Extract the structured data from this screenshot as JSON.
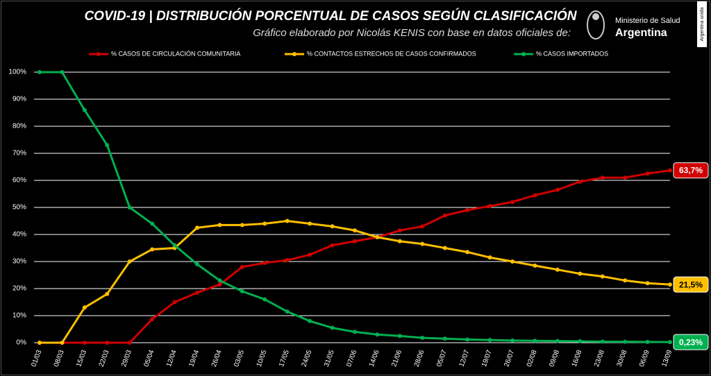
{
  "chart_data": {
    "type": "line",
    "title": "COVID-19  |  DISTRIBUCIÓN PORCENTUAL DE CASOS SEGÚN CLASIFICACIÓN",
    "subtitle": "Gráfico elaborado por Nicolás KENIS con base en datos oficiales de:",
    "logo": {
      "line1": "Ministerio de Salud",
      "line2": "Argentina",
      "side": "Argentina unida"
    },
    "categories": [
      "01/03",
      "08/03",
      "15/03",
      "22/03",
      "29/03",
      "05/04",
      "12/04",
      "19/04",
      "26/04",
      "03/05",
      "10/05",
      "17/05",
      "24/05",
      "31/05",
      "07/06",
      "14/06",
      "21/06",
      "28/06",
      "05/07",
      "12/07",
      "19/07",
      "26/07",
      "02/08",
      "09/08",
      "16/08",
      "23/08",
      "30/08",
      "06/09",
      "13/09"
    ],
    "ylim": [
      0,
      100
    ],
    "yticks": [
      {
        "value": 0,
        "label": "0%"
      },
      {
        "value": 10,
        "label": "10%"
      },
      {
        "value": 20,
        "label": "20%"
      },
      {
        "value": 30,
        "label": "30%"
      },
      {
        "value": 40,
        "label": "40%"
      },
      {
        "value": 50,
        "label": "50%"
      },
      {
        "value": 60,
        "label": "60%"
      },
      {
        "value": 70,
        "label": "70%"
      },
      {
        "value": 80,
        "label": "80%"
      },
      {
        "value": 90,
        "label": "90%"
      },
      {
        "value": 100,
        "label": "100%"
      }
    ],
    "grid": true,
    "legend": "top",
    "series": [
      {
        "name": "% CASOS DE CIRCULACIÓN COMUNITARIA",
        "color": "#d00000",
        "values": [
          0,
          0,
          0,
          0,
          0,
          8.7,
          15,
          18.5,
          21.5,
          28,
          29.5,
          30.5,
          32.5,
          36,
          37.5,
          39,
          41.5,
          43,
          47,
          49,
          50.5,
          52,
          54.5,
          56.5,
          59.5,
          61,
          61,
          62.5,
          63.7
        ],
        "value_labels": [
          null,
          null,
          null,
          null,
          null,
          null,
          null,
          null,
          null,
          null,
          null,
          null,
          null,
          null,
          null,
          null,
          null,
          null,
          null,
          null,
          null,
          null,
          null,
          null,
          null,
          null,
          null,
          null,
          "63,7%"
        ]
      },
      {
        "name": "% CONTACTOS ESTRECHOS DE CASOS CONFIRMADOS",
        "color": "#ffc000",
        "values": [
          0,
          0,
          13,
          18,
          30,
          34.5,
          35,
          42.5,
          43.5,
          43.5,
          44,
          45,
          44,
          43,
          41.5,
          39,
          37.5,
          36.5,
          35,
          33.5,
          31.5,
          30,
          28.5,
          27,
          25.5,
          24.5,
          23,
          22,
          21.5
        ],
        "value_labels": [
          null,
          null,
          null,
          null,
          null,
          null,
          null,
          null,
          null,
          null,
          null,
          null,
          null,
          null,
          null,
          null,
          null,
          null,
          null,
          null,
          null,
          null,
          null,
          null,
          null,
          null,
          null,
          null,
          "21,5%"
        ]
      },
      {
        "name": "% CASOS IMPORTADOS",
        "color": "#00b050",
        "values": [
          100,
          100,
          86,
          73,
          50,
          44,
          36,
          29,
          23,
          19,
          16,
          11.5,
          8,
          5.5,
          4,
          3,
          2.5,
          1.8,
          1.5,
          1.2,
          1,
          0.8,
          0.7,
          0.6,
          0.5,
          0.4,
          0.35,
          0.3,
          0.23
        ],
        "value_labels": [
          null,
          null,
          null,
          null,
          null,
          null,
          null,
          null,
          null,
          null,
          null,
          null,
          null,
          null,
          null,
          null,
          null,
          null,
          null,
          null,
          null,
          null,
          null,
          null,
          null,
          null,
          null,
          null,
          "0,23%"
        ]
      }
    ]
  }
}
